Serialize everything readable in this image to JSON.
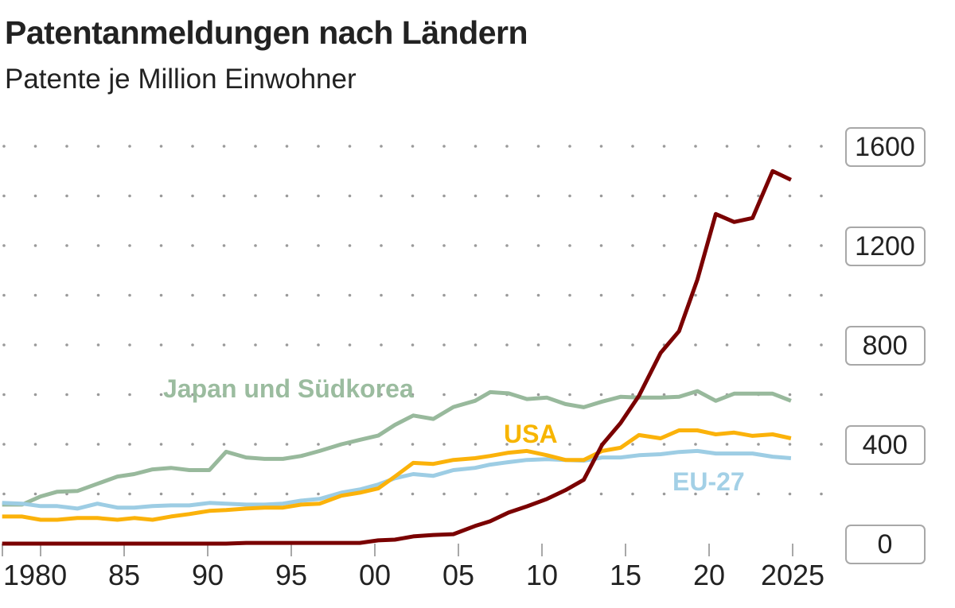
{
  "title": "Patentanmeldungen nach Ländern",
  "subtitle": "Patente je Million Einwohner",
  "chart_data": {
    "type": "line",
    "title": "Patentanmeldungen nach Ländern",
    "subtitle": "Patente je Million Einwohner",
    "xlabel": "",
    "ylabel": "",
    "xlim": [
      1977.7,
      2025
    ],
    "ylim": [
      0,
      1600
    ],
    "grid": "dotted",
    "x_ticks": [
      {
        "value": 1980,
        "label": "1980"
      },
      {
        "value": 1985,
        "label": "85"
      },
      {
        "value": 1990,
        "label": "90"
      },
      {
        "value": 1995,
        "label": "95"
      },
      {
        "value": 2000,
        "label": "00"
      },
      {
        "value": 2005,
        "label": "05"
      },
      {
        "value": 2010,
        "label": "10"
      },
      {
        "value": 2015,
        "label": "15"
      },
      {
        "value": 2020,
        "label": "20"
      },
      {
        "value": 2025,
        "label": "2025"
      }
    ],
    "y_ticks": [
      0,
      400,
      800,
      1200,
      1600
    ],
    "y_tick_labels": [
      "0",
      "400",
      "800",
      "1200",
      "1600"
    ],
    "x": [
      1977.7,
      1978.9,
      1980.0,
      1981.0,
      1982.2,
      1983.4,
      1984.6,
      1985.6,
      1986.7,
      1987.8,
      1988.9,
      1990.1,
      1991.1,
      1992.3,
      1993.4,
      1994.5,
      1995.6,
      1996.7,
      1998.0,
      1999.1,
      2000.2,
      2001.2,
      2002.3,
      2003.5,
      2004.7,
      2006.0,
      2006.9,
      2008.0,
      2009.1,
      2010.3,
      2011.4,
      2012.5,
      2013.6,
      2014.7,
      2015.8,
      2017.1,
      2018.2,
      2019.3,
      2020.4,
      2021.5,
      2022.6,
      2023.8,
      2024.9
    ],
    "series": [
      {
        "name": "Japan und Südkorea",
        "color": "#98b99c",
        "label_color": "#9bbc9f",
        "values": [
          157,
          157,
          190,
          209,
          212,
          241,
          270,
          280,
          299,
          305,
          296,
          296,
          370,
          347,
          341,
          341,
          353,
          373,
          400,
          418,
          435,
          478,
          516,
          502,
          550,
          575,
          610,
          605,
          582,
          588,
          562,
          549,
          572,
          591,
          588,
          588,
          591,
          614,
          575,
          604,
          604,
          604,
          575
        ]
      },
      {
        "name": "USA",
        "color": "#fbb20a",
        "label_color": "#f7b500",
        "values": [
          109,
          109,
          96,
          96,
          103,
          103,
          96,
          103,
          96,
          109,
          119,
          132,
          135,
          141,
          145,
          145,
          157,
          161,
          193,
          205,
          222,
          270,
          325,
          321,
          337,
          344,
          353,
          366,
          373,
          356,
          337,
          337,
          373,
          386,
          437,
          424,
          456,
          456,
          440,
          447,
          434,
          440,
          424
        ]
      },
      {
        "name": "EU-27",
        "color": "#9dcde4",
        "label_color": "#a3d0e6",
        "values": [
          164,
          161,
          151,
          151,
          141,
          161,
          145,
          145,
          151,
          154,
          154,
          164,
          161,
          157,
          157,
          161,
          173,
          180,
          205,
          218,
          238,
          263,
          280,
          273,
          296,
          305,
          318,
          328,
          337,
          340,
          337,
          334,
          347,
          347,
          356,
          360,
          369,
          373,
          363,
          363,
          363,
          350,
          344
        ]
      },
      {
        "color": "#7a0000",
        "values": [
          0,
          0,
          0,
          0,
          0,
          0,
          0,
          0,
          0,
          0,
          0,
          0,
          0,
          3,
          3,
          3,
          3,
          3,
          3,
          3,
          13,
          16,
          29,
          35,
          38,
          71,
          90,
          125,
          150,
          180,
          215,
          257,
          398,
          485,
          595,
          768,
          855,
          1063,
          1327,
          1295,
          1311,
          1500,
          1465
        ]
      }
    ]
  }
}
